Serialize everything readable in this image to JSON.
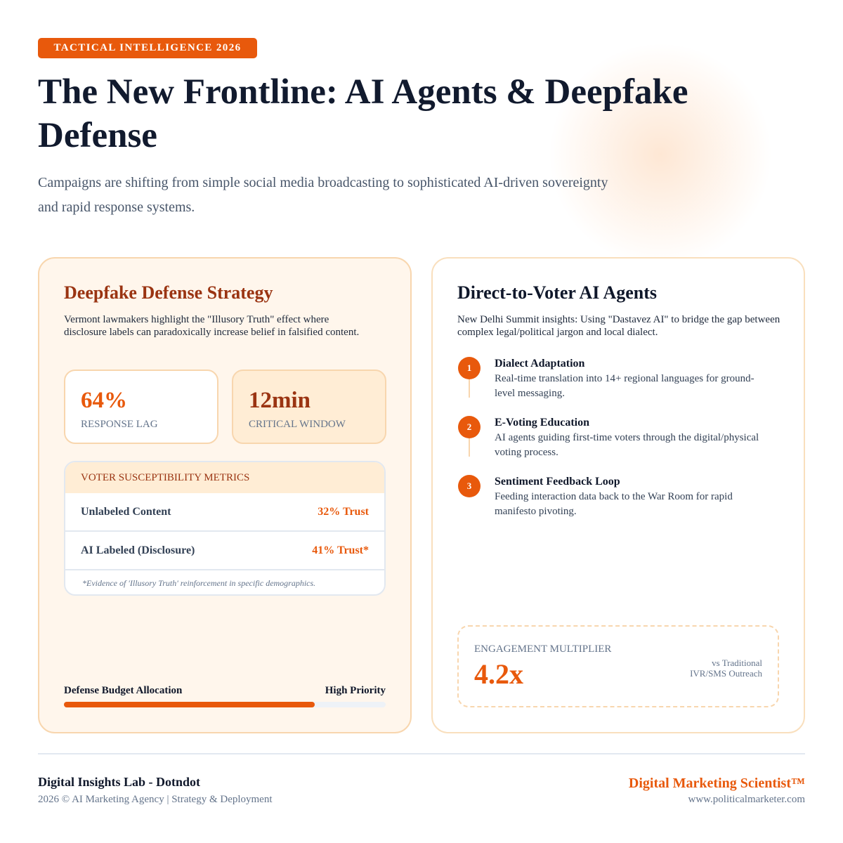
{
  "header": {
    "badge": "TACTICAL INTELLIGENCE 2026",
    "title": "The New Frontline: AI Agents & Deepfake Defense",
    "subtitle": "Campaigns are shifting from simple social media broadcasting to sophisticated AI-driven sovereignty and rapid response systems."
  },
  "left_card": {
    "title": "Deepfake Defense Strategy",
    "description": "Vermont lawmakers highlight the \"Illusory Truth\" effect where disclosure labels can paradoxically increase belief in falsified content.",
    "stats": [
      {
        "value": "64%",
        "label": "RESPONSE LAG"
      },
      {
        "value": "12min",
        "label": "CRITICAL WINDOW"
      }
    ],
    "table": {
      "title": "VOTER SUSCEPTIBILITY METRICS",
      "rows": [
        [
          "Unlabeled Content",
          "32% Trust"
        ],
        [
          "AI Labeled (Disclosure)",
          "41% Trust*"
        ]
      ],
      "footnote": "*Evidence of 'Illusory Truth' reinforcement in specific demographics."
    },
    "budget": {
      "label": "Defense Budget Allocation",
      "status": "High Priority",
      "fill": 78
    }
  },
  "right_card": {
    "title": "Direct-to-Voter AI Agents",
    "description": "New Delhi Summit insights: Using \"Dastavez AI\" to bridge the gap between complex legal/political jargon and local dialect.",
    "steps": [
      {
        "number": "1",
        "title": "Dialect Adaptation",
        "text": "Real-time translation into 14+ regional languages for ground-level messaging."
      },
      {
        "number": "2",
        "title": "E-Voting Education",
        "text": "AI agents guiding first-time voters through the digital/physical voting process."
      },
      {
        "number": "3",
        "title": "Sentiment Feedback Loop",
        "text": "Feeding interaction data back to the War Room for rapid manifesto pivoting."
      }
    ],
    "engagement": {
      "label": "ENGAGEMENT MULTIPLIER",
      "value": "4.2x",
      "note_lines": [
        "vs Traditional",
        "IVR/SMS Outreach"
      ]
    }
  },
  "footer": {
    "org": "Digital Insights Lab - Dotndot",
    "copyright": "2026 © AI Marketing Agency | Strategy & Deployment",
    "brand": "Digital Marketing Scientist™",
    "url": "www.politicalmarketer.com"
  }
}
